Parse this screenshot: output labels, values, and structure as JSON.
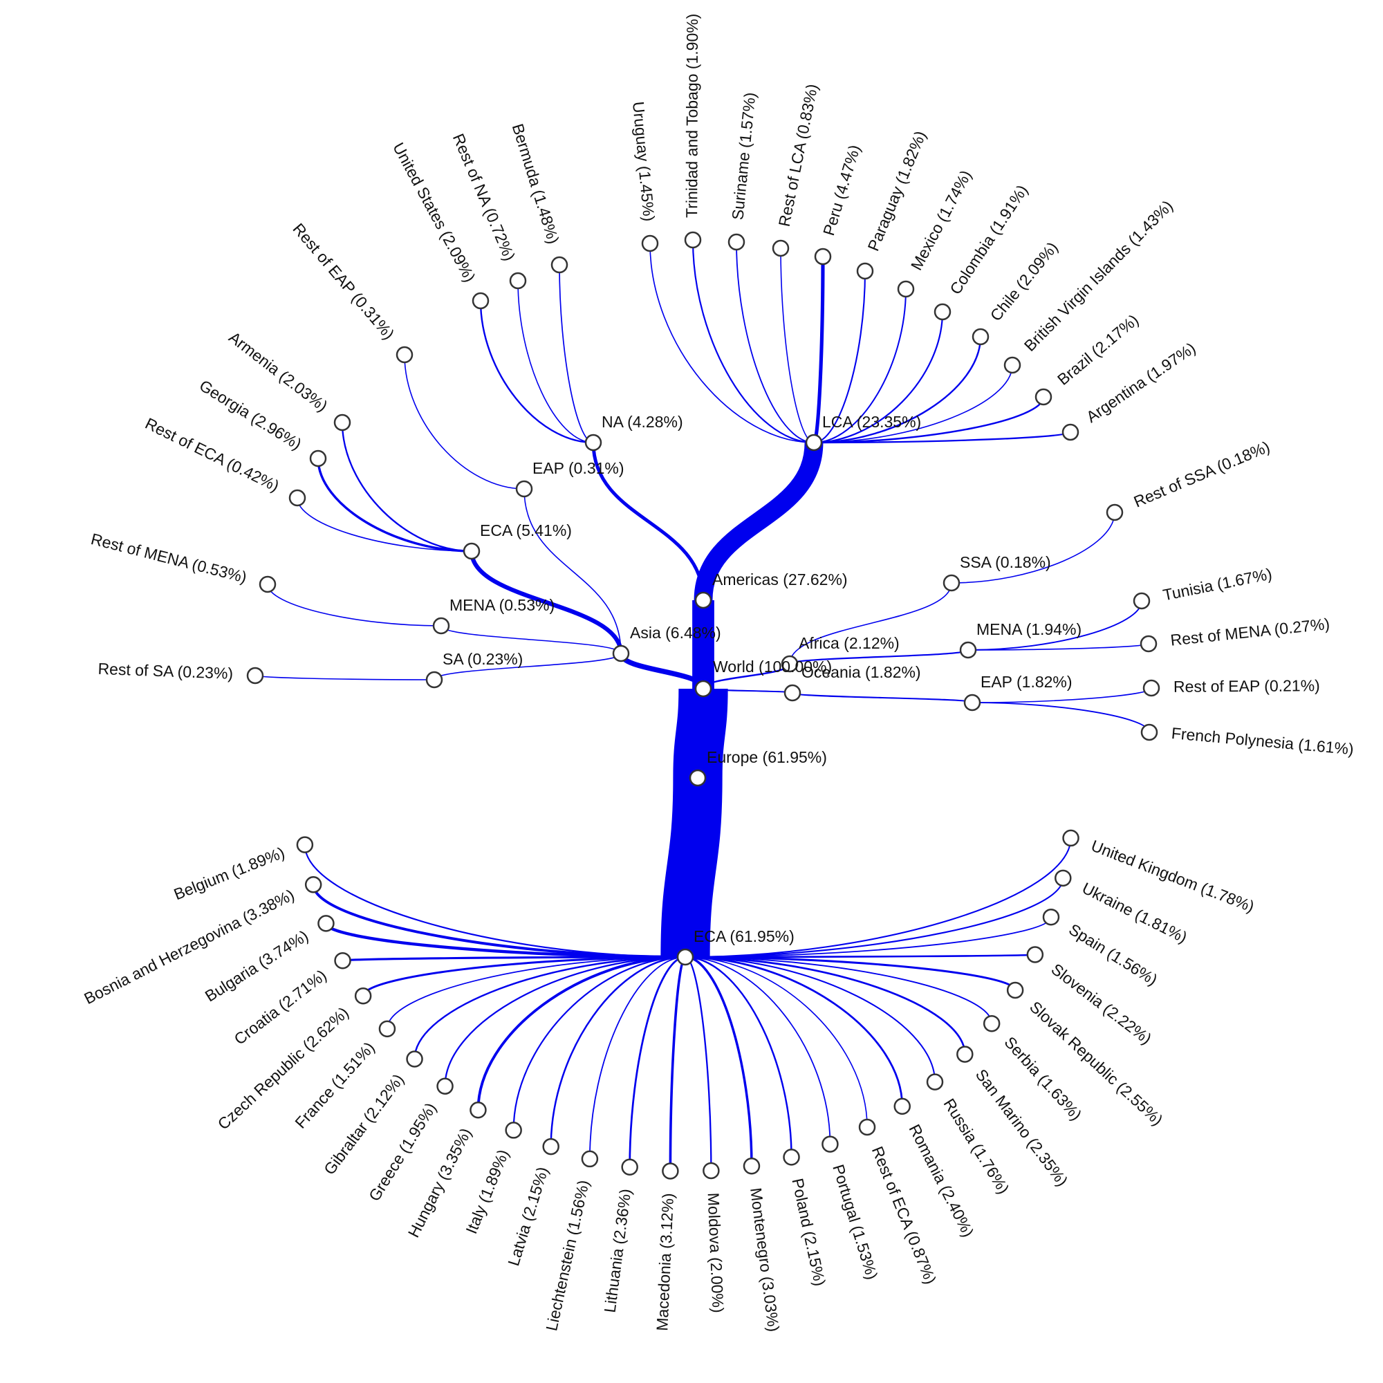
{
  "colors": {
    "link": "#0000ee",
    "node_fill": "#ffffff",
    "node_stroke": "#333333",
    "text": "#111111"
  },
  "tree": {
    "label": "World (100.00%)",
    "value": 100.0,
    "children": [
      {
        "label": "Americas (27.62%)",
        "value": 27.62,
        "children": [
          {
            "label": "NA (4.28%)",
            "value": 4.28,
            "children": [
              {
                "label": "United States (2.09%)",
                "value": 2.09
              },
              {
                "label": "Rest of NA (0.72%)",
                "value": 0.72
              },
              {
                "label": "Bermuda (1.48%)",
                "value": 1.48
              }
            ]
          },
          {
            "label": "LCA (23.35%)",
            "value": 23.35,
            "children": [
              {
                "label": "Uruguay (1.45%)",
                "value": 1.45
              },
              {
                "label": "Trinidad and Tobago (1.90%)",
                "value": 1.9
              },
              {
                "label": "Suriname (1.57%)",
                "value": 1.57
              },
              {
                "label": "Rest of LCA (0.83%)",
                "value": 0.83
              },
              {
                "label": "Peru (4.47%)",
                "value": 4.47
              },
              {
                "label": "Paraguay (1.82%)",
                "value": 1.82
              },
              {
                "label": "Mexico (1.74%)",
                "value": 1.74
              },
              {
                "label": "Colombia (1.91%)",
                "value": 1.91
              },
              {
                "label": "Chile (2.09%)",
                "value": 2.09
              },
              {
                "label": "British Virgin Islands (1.43%)",
                "value": 1.43
              },
              {
                "label": "Brazil (2.17%)",
                "value": 2.17
              },
              {
                "label": "Argentina (1.97%)",
                "value": 1.97
              }
            ]
          }
        ]
      },
      {
        "label": "Asia (6.48%)",
        "value": 6.48,
        "children": [
          {
            "label": "EAP (0.31%)",
            "value": 0.31,
            "children": [
              {
                "label": "Rest of EAP (0.31%)",
                "value": 0.31
              }
            ]
          },
          {
            "label": "ECA (5.41%)",
            "value": 5.41,
            "children": [
              {
                "label": "Armenia (2.03%)",
                "value": 2.03
              },
              {
                "label": "Georgia (2.96%)",
                "value": 2.96
              },
              {
                "label": "Rest of ECA (0.42%)",
                "value": 0.42
              }
            ]
          },
          {
            "label": "MENA (0.53%)",
            "value": 0.53,
            "children": [
              {
                "label": "Rest of MENA (0.53%)",
                "value": 0.53
              }
            ]
          },
          {
            "label": "SA (0.23%)",
            "value": 0.23,
            "children": [
              {
                "label": "Rest of SA (0.23%)",
                "value": 0.23
              }
            ]
          }
        ]
      },
      {
        "label": "Africa (2.12%)",
        "value": 2.12,
        "children": [
          {
            "label": "SSA (0.18%)",
            "value": 0.18,
            "children": [
              {
                "label": "Rest of SSA (0.18%)",
                "value": 0.18
              }
            ]
          },
          {
            "label": "MENA (1.94%)",
            "value": 1.94,
            "children": [
              {
                "label": "Tunisia (1.67%)",
                "value": 1.67
              },
              {
                "label": "Rest of MENA (0.27%)",
                "value": 0.27
              }
            ]
          }
        ]
      },
      {
        "label": "Oceania (1.82%)",
        "value": 1.82,
        "children": [
          {
            "label": "EAP (1.82%)",
            "value": 1.82,
            "children": [
              {
                "label": "Rest of EAP (0.21%)",
                "value": 0.21
              },
              {
                "label": "French Polynesia (1.61%)",
                "value": 1.61
              }
            ]
          }
        ]
      },
      {
        "label": "Europe (61.95%)",
        "value": 61.95,
        "children": [
          {
            "label": "ECA (61.95%)",
            "value": 61.95,
            "children": [
              {
                "label": "Belgium (1.89%)",
                "value": 1.89
              },
              {
                "label": "Bosnia and Herzegovina (3.38%)",
                "value": 3.38
              },
              {
                "label": "Bulgaria (3.74%)",
                "value": 3.74
              },
              {
                "label": "Croatia (2.71%)",
                "value": 2.71
              },
              {
                "label": "Czech Republic (2.62%)",
                "value": 2.62
              },
              {
                "label": "France (1.51%)",
                "value": 1.51
              },
              {
                "label": "Gibraltar (2.12%)",
                "value": 2.12
              },
              {
                "label": "Greece (1.95%)",
                "value": 1.95
              },
              {
                "label": "Hungary (3.35%)",
                "value": 3.35
              },
              {
                "label": "Italy (1.89%)",
                "value": 1.89
              },
              {
                "label": "Latvia (2.15%)",
                "value": 2.15
              },
              {
                "label": "Liechtenstein (1.56%)",
                "value": 1.56
              },
              {
                "label": "Lithuania (2.36%)",
                "value": 2.36
              },
              {
                "label": "Macedonia (3.12%)",
                "value": 3.12
              },
              {
                "label": "Moldova (2.00%)",
                "value": 2.0
              },
              {
                "label": "Montenegro (3.03%)",
                "value": 3.03
              },
              {
                "label": "Poland (2.15%)",
                "value": 2.15
              },
              {
                "label": "Portugal (1.53%)",
                "value": 1.53
              },
              {
                "label": "Rest of ECA (0.87%)",
                "value": 0.87
              },
              {
                "label": "Romania (2.40%)",
                "value": 2.4
              },
              {
                "label": "Russia (1.76%)",
                "value": 1.76
              },
              {
                "label": "San Marino (2.35%)",
                "value": 2.35
              },
              {
                "label": "Serbia (1.63%)",
                "value": 1.63
              },
              {
                "label": "Slovak Republic (2.55%)",
                "value": 2.55
              },
              {
                "label": "Slovenia (2.22%)",
                "value": 2.22
              },
              {
                "label": "Spain (1.56%)",
                "value": 1.56
              },
              {
                "label": "Ukraine (1.81%)",
                "value": 1.81
              },
              {
                "label": "United Kingdom (1.78%)",
                "value": 1.78
              }
            ]
          }
        ]
      }
    ]
  }
}
